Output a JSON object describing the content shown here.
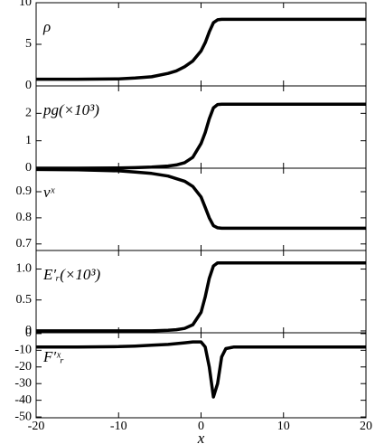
{
  "chart_data": [
    {
      "type": "line",
      "label": "ρ",
      "color": "#000000",
      "x": [
        -20,
        -15,
        -10,
        -8,
        -6,
        -4,
        -3,
        -2,
        -1,
        0,
        0.5,
        1,
        1.5,
        2,
        2.5,
        3,
        4,
        5,
        10,
        15,
        20
      ],
      "values": [
        0.8,
        0.8,
        0.85,
        0.95,
        1.1,
        1.5,
        1.8,
        2.3,
        3.0,
        4.2,
        5.2,
        6.5,
        7.6,
        7.95,
        8,
        8,
        8,
        8,
        8,
        8,
        8
      ],
      "xlim": [
        -20,
        20
      ],
      "ylim": [
        0,
        10
      ],
      "yticks": [
        0,
        5,
        10
      ]
    },
    {
      "type": "line",
      "label": "pg(×10³)",
      "color": "#000000",
      "x": [
        -20,
        -15,
        -10,
        -8,
        -6,
        -4,
        -3,
        -2,
        -1,
        0,
        0.5,
        1,
        1.5,
        2,
        2.5,
        3,
        4,
        5,
        10,
        15,
        20
      ],
      "values": [
        0,
        0,
        0.01,
        0.02,
        0.04,
        0.08,
        0.12,
        0.2,
        0.4,
        0.9,
        1.3,
        1.8,
        2.2,
        2.32,
        2.33,
        2.33,
        2.33,
        2.33,
        2.33,
        2.33,
        2.33
      ],
      "xlim": [
        -20,
        20
      ],
      "ylim": [
        0,
        3
      ],
      "yticks": [
        0,
        1,
        2
      ]
    },
    {
      "type": "line",
      "label": "vˣ",
      "color": "#000000",
      "x": [
        -20,
        -15,
        -10,
        -8,
        -6,
        -4,
        -3,
        -2,
        -1,
        0,
        0.5,
        1,
        1.5,
        2,
        2.5,
        3,
        4,
        5,
        10,
        15,
        20
      ],
      "values": [
        0.985,
        0.984,
        0.98,
        0.975,
        0.97,
        0.96,
        0.95,
        0.94,
        0.92,
        0.88,
        0.84,
        0.8,
        0.77,
        0.762,
        0.76,
        0.76,
        0.76,
        0.76,
        0.76,
        0.76,
        0.76
      ],
      "xlim": [
        -20,
        20
      ],
      "ylim": [
        0.675,
        0.99
      ],
      "yticks": [
        0.7,
        0.8,
        0.9
      ]
    },
    {
      "type": "line",
      "label": "E′ᵣ(×10³)",
      "color": "#000000",
      "x": [
        -20,
        -15,
        -10,
        -8,
        -6,
        -4,
        -3,
        -2,
        -1,
        0,
        0.5,
        1,
        1.5,
        2,
        2.5,
        3,
        4,
        5,
        10,
        15,
        20
      ],
      "values": [
        0,
        0,
        0,
        0,
        0,
        0.01,
        0.02,
        0.04,
        0.1,
        0.3,
        0.55,
        0.85,
        1.05,
        1.1,
        1.1,
        1.1,
        1.1,
        1.1,
        1.1,
        1.1,
        1.1
      ],
      "xlim": [
        -20,
        20
      ],
      "ylim": [
        -0.03,
        1.3
      ],
      "yticks": [
        0,
        0.5,
        {
          "value": 1,
          "label": "1.0"
        }
      ]
    },
    {
      "type": "line",
      "label": "F′ˣᵣ",
      "color": "#000000",
      "xlabel": "x",
      "x": [
        -20,
        -15,
        -10,
        -8,
        -6,
        -4,
        -3,
        -2,
        -1,
        0,
        0.5,
        1,
        1.5,
        2,
        2.5,
        3,
        4,
        5,
        10,
        15,
        20
      ],
      "values": [
        -8,
        -8,
        -7.8,
        -7.5,
        -7,
        -6.5,
        -6,
        -5.5,
        -5,
        -5,
        -8,
        -20,
        -38,
        -30,
        -14,
        -9,
        -8,
        -8,
        -8,
        -8,
        -8
      ],
      "xlim": [
        -20,
        20
      ],
      "ylim": [
        -50.5,
        0.5
      ],
      "yticks": [
        0,
        -10,
        -20,
        -30,
        -40,
        -50
      ],
      "xticks": [
        -20,
        -10,
        0,
        10,
        20
      ]
    }
  ]
}
